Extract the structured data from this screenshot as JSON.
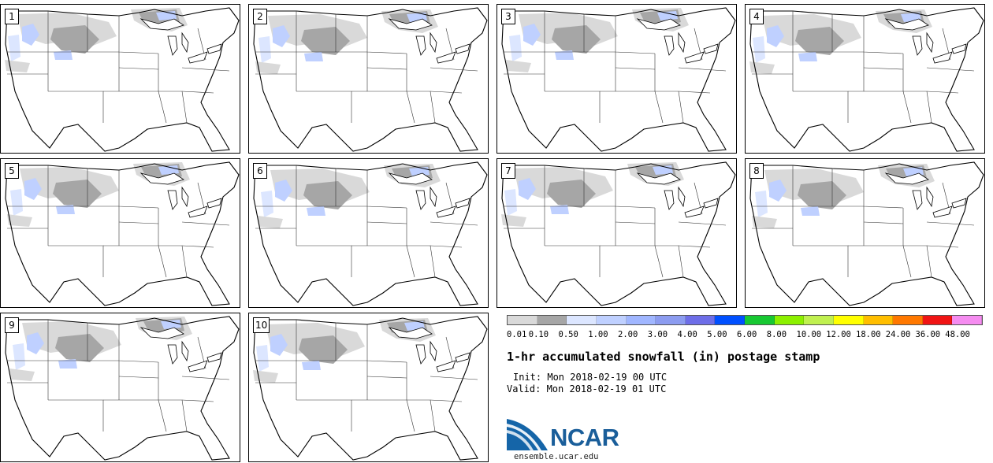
{
  "panels": [
    {
      "label": "1"
    },
    {
      "label": "2"
    },
    {
      "label": "3"
    },
    {
      "label": "4"
    },
    {
      "label": "5"
    },
    {
      "label": "6"
    },
    {
      "label": "7"
    },
    {
      "label": "8"
    },
    {
      "label": "9"
    },
    {
      "label": "10"
    }
  ],
  "legend": {
    "colors": [
      "#d9d9d9",
      "#a6a6a6",
      "#dce6ff",
      "#bfd0ff",
      "#a0b6ff",
      "#8c9cf0",
      "#6e6ee8",
      "#0050ff",
      "#17c832",
      "#8cf000",
      "#c0f050",
      "#ffff00",
      "#ffbe00",
      "#ff7800",
      "#f01414",
      "#f58cf0"
    ],
    "ticks": [
      "0.01",
      "0.10",
      "0.50",
      "1.00",
      "2.00",
      "3.00",
      "4.00",
      "5.00",
      "6.00",
      "8.00",
      "10.00",
      "12.00",
      "18.00",
      "24.00",
      "36.00",
      "48.00"
    ]
  },
  "title": "1-hr accumulated snowfall (in) postage stamp",
  "init": "Init: Mon 2018-02-19 00 UTC",
  "valid": "Valid: Mon 2018-02-19 01 UTC",
  "logo": {
    "text": "NCAR"
  },
  "url": "ensemble.ucar.edu"
}
